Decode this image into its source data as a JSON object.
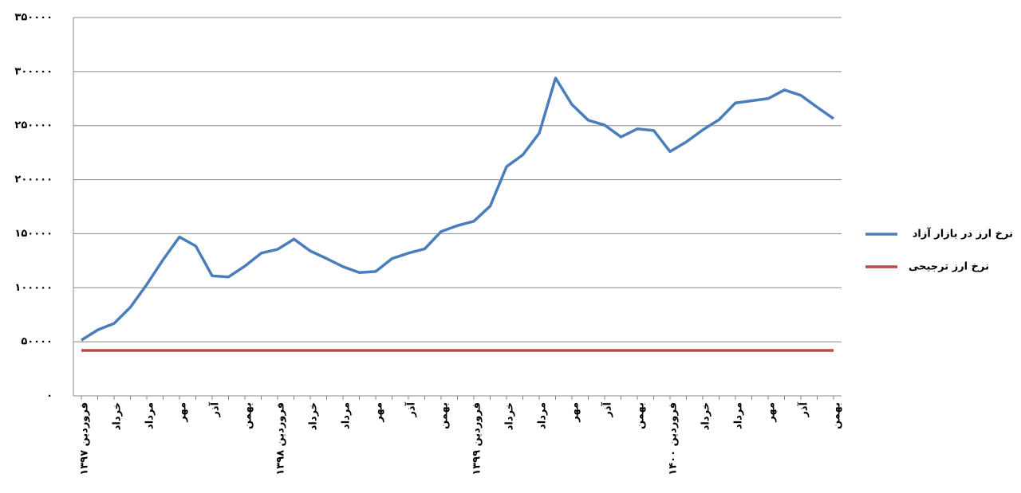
{
  "chart_data": {
    "type": "line",
    "categories": [
      "فروردین ۱۳۹۷",
      null,
      "خرداد",
      null,
      "مرداد",
      null,
      "مهر",
      null,
      "آذر",
      null,
      "بهمن",
      null,
      "فروردین ۱۳۹۸",
      null,
      "خرداد",
      null,
      "مرداد",
      null,
      "مهر",
      null,
      "آذر",
      null,
      "بهمن",
      null,
      "فروردین ۱۳۹۹",
      null,
      "خرداد",
      null,
      "مرداد",
      null,
      "مهر",
      null,
      "آذر",
      null,
      "بهمن",
      null,
      "فروردین ۱۴۰۰",
      null,
      "خرداد",
      null,
      "مرداد",
      null,
      "مهر",
      null,
      "آذر",
      null,
      "بهمن"
    ],
    "series": [
      {
        "name": "نرخ ارز در بازار آزاد",
        "color": "#4a7ebb",
        "values": [
          51500,
          61000,
          67000,
          82000,
          103000,
          126000,
          147000,
          138500,
          111000,
          110000,
          120000,
          132000,
          135500,
          145000,
          134000,
          127000,
          119500,
          114000,
          115000,
          127000,
          132000,
          136000,
          152000,
          157500,
          161500,
          175500,
          212000,
          223000,
          243000,
          294000,
          269500,
          255000,
          250500,
          239500,
          247000,
          245500,
          226000,
          235000,
          246000,
          255500,
          271000,
          273000,
          275000,
          283000,
          278000,
          267000,
          256500
        ]
      },
      {
        "name": "نرخ ارز ترجیحی",
        "color": "#be4b48",
        "values": [
          42000,
          42000,
          42000,
          42000,
          42000,
          42000,
          42000,
          42000,
          42000,
          42000,
          42000,
          42000,
          42000,
          42000,
          42000,
          42000,
          42000,
          42000,
          42000,
          42000,
          42000,
          42000,
          42000,
          42000,
          42000,
          42000,
          42000,
          42000,
          42000,
          42000,
          42000,
          42000,
          42000,
          42000,
          42000,
          42000,
          42000,
          42000,
          42000,
          42000,
          42000,
          42000,
          42000,
          42000,
          42000,
          42000,
          42000
        ]
      }
    ],
    "ylim": [
      0,
      350000
    ],
    "yticks": [
      {
        "value": 0,
        "label": "۰"
      },
      {
        "value": 50000,
        "label": "۵۰۰۰۰"
      },
      {
        "value": 100000,
        "label": "۱۰۰۰۰۰"
      },
      {
        "value": 150000,
        "label": "۱۵۰۰۰۰"
      },
      {
        "value": 200000,
        "label": "۲۰۰۰۰۰"
      },
      {
        "value": 250000,
        "label": "۲۵۰۰۰۰"
      },
      {
        "value": 300000,
        "label": "۳۰۰۰۰۰"
      },
      {
        "value": 350000,
        "label": "۳۵۰۰۰۰"
      }
    ],
    "grid": true
  }
}
